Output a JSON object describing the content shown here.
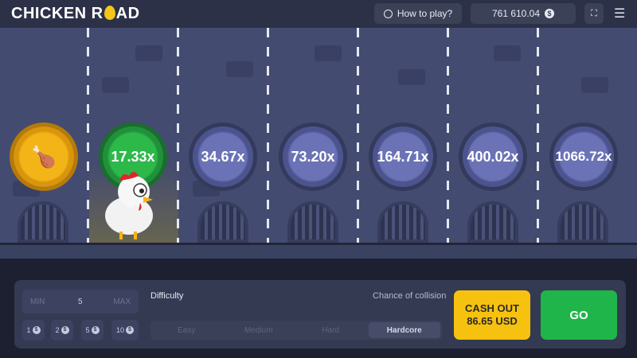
{
  "header": {
    "logo": "CHICKEN ROAD",
    "logo_parts": [
      "CHICKEN R",
      "AD"
    ],
    "how_to_play": "How to play?",
    "balance": "761 610.04",
    "currency_icon": "$"
  },
  "multipliers": [
    "17.33x",
    "34.67x",
    "73.20x",
    "164.71x",
    "400.02x",
    "1066.72x"
  ],
  "controls": {
    "bet": {
      "min_label": "MIN",
      "value": "5",
      "max_label": "MAX"
    },
    "chips": [
      "1",
      "2",
      "5",
      "10"
    ],
    "difficulty_label": "Difficulty",
    "collision_label": "Chance of collision",
    "difficulties": [
      "Easy",
      "Medium",
      "Hard",
      "Hardcore"
    ],
    "selected_difficulty": "Hardcore",
    "cash_out_label": "CASH OUT",
    "cash_out_amount": "86.65 USD",
    "go_label": "GO"
  },
  "colors": {
    "accent_yellow": "#f7c20f",
    "go_green": "#1fb54a",
    "active_coin": "#2db84a"
  }
}
